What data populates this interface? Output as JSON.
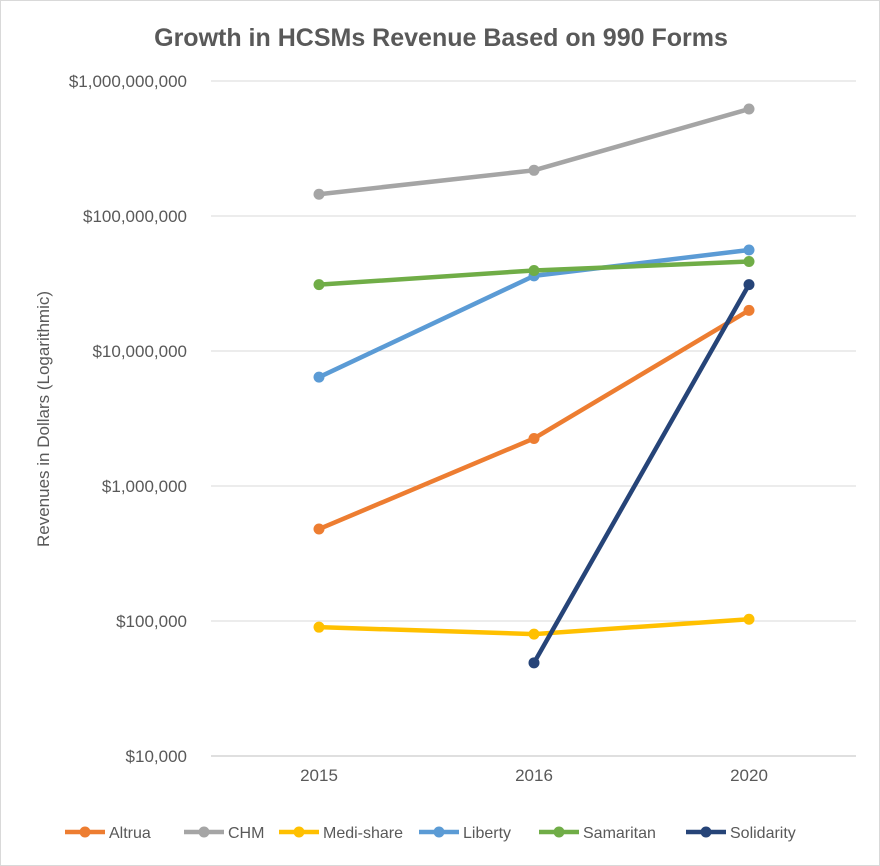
{
  "chart_data": {
    "type": "line",
    "title": "Growth in HCSMs Revenue Based on 990 Forms",
    "xlabel": "",
    "ylabel": "Revenues in Dollars (Logarithmic)",
    "yscale": "log",
    "ylim": [
      10000,
      1000000000
    ],
    "grid": true,
    "legend_position": "bottom",
    "categories": [
      "2015",
      "2016",
      "2020"
    ],
    "y_tick_labels": [
      "$10,000",
      "$100,000",
      "$1,000,000",
      "$10,000,000",
      "$100,000,000",
      "$1,000,000,000"
    ],
    "y_tick_values": [
      10000,
      100000,
      1000000,
      10000000,
      100000000,
      1000000000
    ],
    "series": [
      {
        "name": "Altrua",
        "color": "#ed7d31",
        "values": [
          480000,
          2250000,
          20000000
        ]
      },
      {
        "name": "CHM",
        "color": "#a5a5a5",
        "values": [
          145000000,
          218000000,
          620000000
        ]
      },
      {
        "name": "Medi-share",
        "color": "#ffc000",
        "values": [
          90000,
          80000,
          103000
        ]
      },
      {
        "name": "Liberty",
        "color": "#5b9bd5",
        "values": [
          6400000,
          36000000,
          56000000
        ]
      },
      {
        "name": "Samaritan",
        "color": "#70ad47",
        "values": [
          31000000,
          39500000,
          46000000
        ]
      },
      {
        "name": "Solidarity",
        "color": "#264478",
        "values": [
          null,
          49000,
          31000000
        ]
      }
    ]
  }
}
